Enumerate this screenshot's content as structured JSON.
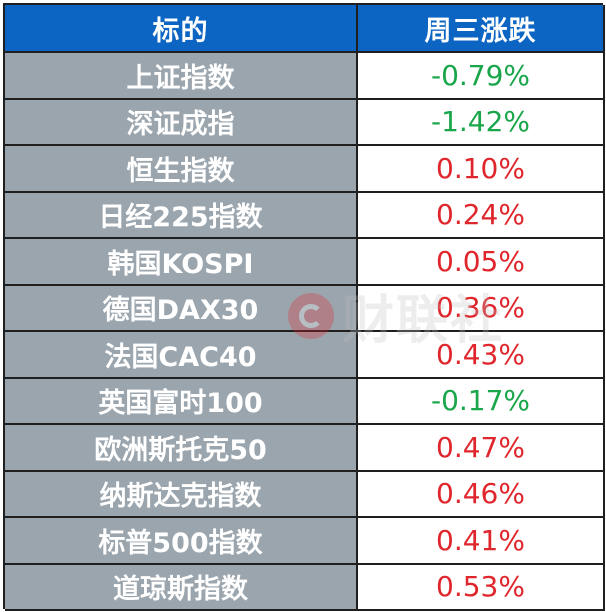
{
  "header": {
    "col_name": "标的",
    "col_change": "周三涨跌"
  },
  "rows": [
    {
      "name": "上证指数",
      "change": "-0.79%",
      "direction": "down"
    },
    {
      "name": "深证成指",
      "change": "-1.42%",
      "direction": "down"
    },
    {
      "name": "恒生指数",
      "change": "0.10%",
      "direction": "up"
    },
    {
      "name": "日经225指数",
      "change": "0.24%",
      "direction": "up"
    },
    {
      "name": "韩国KOSPI",
      "change": "0.05%",
      "direction": "up"
    },
    {
      "name": "德国DAX30",
      "change": "0.36%",
      "direction": "up"
    },
    {
      "name": "法国CAC40",
      "change": "0.43%",
      "direction": "up"
    },
    {
      "name": "英国富时100",
      "change": "-0.17%",
      "direction": "down"
    },
    {
      "name": "欧洲斯托克50",
      "change": "0.47%",
      "direction": "up"
    },
    {
      "name": "纳斯达克指数",
      "change": "0.46%",
      "direction": "up"
    },
    {
      "name": "标普500指数",
      "change": "0.41%",
      "direction": "up"
    },
    {
      "name": "道琼斯指数",
      "change": "0.53%",
      "direction": "up"
    }
  ],
  "watermark": {
    "text": "财联社",
    "icon": "cls-logo-icon"
  },
  "colors": {
    "header_bg": "#0c65c2",
    "name_bg": "#9aa5ad",
    "up": "#e0262d",
    "down": "#1aa64a"
  }
}
